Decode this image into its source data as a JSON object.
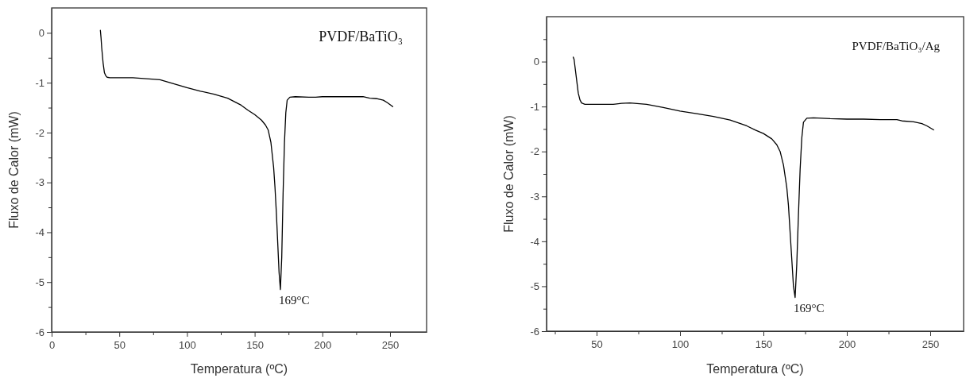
{
  "chart_data": [
    {
      "type": "line",
      "xlabel": "Temperatura (ºC)",
      "ylabel": "Fluxo de Calor (mW)",
      "xlim": [
        0,
        277
      ],
      "ylim": [
        -6,
        0.5
      ],
      "xticks": [
        0,
        {
          "value": 25,
          "label": null
        },
        50,
        {
          "value": 75,
          "label": null
        },
        100,
        {
          "value": 125,
          "label": null
        },
        150,
        {
          "value": 175,
          "label": null
        },
        200,
        {
          "value": 225,
          "label": null
        },
        250
      ],
      "yticks": [
        -6,
        {
          "value": -5.5,
          "label": null
        },
        -5,
        {
          "value": -4.5,
          "label": null
        },
        -4,
        {
          "value": -3.5,
          "label": null
        },
        -3,
        {
          "value": -2.5,
          "label": null
        },
        -2,
        {
          "value": -1.5,
          "label": null
        },
        -1,
        {
          "value": -0.5,
          "label": null
        },
        0
      ],
      "grid": false,
      "marker": "none",
      "line_style": "solid",
      "annotations": [
        "PVDF/BaTiO₃",
        {
          "text": "169°C",
          "x": 169,
          "y": -5.15
        }
      ],
      "series": [
        {
          "color": "#000000",
          "x": [
            36,
            36.5,
            37,
            38,
            39,
            40,
            41,
            43,
            50,
            60,
            70,
            80,
            90,
            100,
            110,
            120,
            130,
            140,
            145,
            150,
            155,
            158,
            160,
            162,
            164,
            165,
            166,
            167,
            168,
            169,
            170,
            171,
            172,
            173,
            174,
            176,
            180,
            190,
            195,
            200,
            210,
            220,
            230,
            235,
            240,
            245,
            248,
            252
          ],
          "values": [
            0.05,
            -0.1,
            -0.3,
            -0.6,
            -0.8,
            -0.86,
            -0.89,
            -0.9,
            -0.9,
            -0.9,
            -0.92,
            -0.94,
            -1.02,
            -1.1,
            -1.17,
            -1.23,
            -1.31,
            -1.45,
            -1.55,
            -1.64,
            -1.75,
            -1.85,
            -1.95,
            -2.2,
            -2.7,
            -3.1,
            -3.6,
            -4.2,
            -4.8,
            -5.15,
            -4.5,
            -3.2,
            -2.2,
            -1.6,
            -1.35,
            -1.29,
            -1.28,
            -1.29,
            -1.29,
            -1.28,
            -1.28,
            -1.28,
            -1.28,
            -1.31,
            -1.32,
            -1.35,
            -1.4,
            -1.48
          ]
        }
      ]
    },
    {
      "type": "line",
      "xlabel": "Temperatura (ºC)",
      "ylabel": "Fluxo de Calor (mW)",
      "xlim": [
        20,
        270
      ],
      "ylim": [
        -6,
        1
      ],
      "xticks": [
        {
          "value": 25,
          "label": null
        },
        50,
        {
          "value": 75,
          "label": null
        },
        100,
        {
          "value": 125,
          "label": null
        },
        150,
        {
          "value": 175,
          "label": null
        },
        200,
        {
          "value": 225,
          "label": null
        },
        250
      ],
      "yticks": [
        -6,
        {
          "value": -5.5,
          "label": null
        },
        -5,
        {
          "value": -4.5,
          "label": null
        },
        -4,
        {
          "value": -3.5,
          "label": null
        },
        -3,
        {
          "value": -2.5,
          "label": null
        },
        -2,
        {
          "value": -1.5,
          "label": null
        },
        -1,
        {
          "value": -0.5,
          "label": null
        },
        0,
        {
          "value": 0.5,
          "label": null
        }
      ],
      "grid": false,
      "marker": "none",
      "line_style": "solid",
      "annotations": [
        "PVDF/BaTiO₃/Ag",
        {
          "text": "169°C",
          "x": 169,
          "y": -5.25
        }
      ],
      "series": [
        {
          "color": "#000000",
          "x": [
            36,
            36.5,
            37,
            38,
            39,
            40,
            41,
            43,
            50,
            60,
            65,
            70,
            80,
            90,
            100,
            110,
            120,
            130,
            140,
            145,
            150,
            155,
            158,
            160,
            162,
            164,
            165,
            166,
            167,
            168,
            169,
            170,
            171,
            172,
            173,
            174,
            176,
            180,
            190,
            200,
            210,
            220,
            230,
            233,
            240,
            245,
            248,
            252
          ],
          "values": [
            0.1,
            0.05,
            -0.1,
            -0.4,
            -0.7,
            -0.85,
            -0.92,
            -0.95,
            -0.95,
            -0.95,
            -0.93,
            -0.92,
            -0.95,
            -1.02,
            -1.1,
            -1.16,
            -1.22,
            -1.3,
            -1.43,
            -1.52,
            -1.6,
            -1.72,
            -1.85,
            -2.0,
            -2.3,
            -2.8,
            -3.2,
            -3.8,
            -4.4,
            -5.0,
            -5.25,
            -4.5,
            -3.4,
            -2.4,
            -1.7,
            -1.35,
            -1.26,
            -1.25,
            -1.27,
            -1.28,
            -1.28,
            -1.29,
            -1.29,
            -1.32,
            -1.34,
            -1.38,
            -1.43,
            -1.52
          ]
        }
      ]
    }
  ]
}
